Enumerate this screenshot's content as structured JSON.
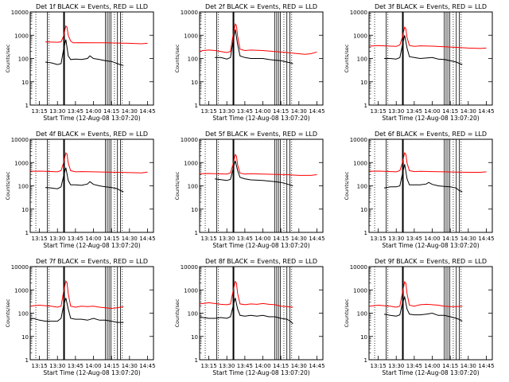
{
  "figure": {
    "ylabel": "Counts/sec",
    "xlabel": "Start Time (12-Aug-08 13:07:20)",
    "x_ticks": [
      "13:15",
      "13:30",
      "13:45",
      "14:00",
      "14:15",
      "14:30",
      "14:45"
    ],
    "x_tick_minutes": [
      15,
      30,
      45,
      60,
      75,
      90,
      105
    ],
    "y_ticks": [
      "1",
      "10",
      "100",
      "1000",
      "10000"
    ],
    "y_tick_values": [
      1,
      10,
      100,
      1000,
      10000
    ],
    "colors": {
      "events": "#000000",
      "lld": "#ff0000",
      "axes": "#000000",
      "background": "#ffffff"
    }
  },
  "chart_data": [
    {
      "type": "line",
      "title": "Det 1f BLACK = Events, RED = LLD",
      "xlabel": "Start Time (12-Aug-08 13:07:20)",
      "ylabel": "Counts/sec",
      "xlim_minutes": [
        7.33,
        110
      ],
      "ylim": [
        1,
        10000
      ],
      "log_y": true,
      "series": [
        {
          "role": "events",
          "x": [
            20,
            25,
            30,
            33,
            35,
            37,
            39,
            41,
            45,
            50,
            55,
            57,
            60,
            65,
            70,
            75,
            80,
            82,
            85
          ],
          "y": [
            70,
            65,
            55,
            60,
            230,
            650,
            130,
            90,
            95,
            90,
            100,
            130,
            100,
            90,
            80,
            75,
            60,
            55,
            50
          ]
        },
        {
          "role": "lld",
          "x": [
            20,
            30,
            33,
            35,
            37,
            38,
            39,
            41,
            43,
            50,
            60,
            70,
            80,
            90,
            100,
            105
          ],
          "y": [
            520,
            500,
            520,
            900,
            2500,
            2200,
            1000,
            560,
            470,
            480,
            470,
            470,
            460,
            450,
            430,
            450
          ]
        }
      ]
    },
    {
      "type": "line",
      "title": "Det 2f BLACK = Events, RED = LLD",
      "xlabel": "Start Time (12-Aug-08 13:07:20)",
      "ylabel": "Counts/sec",
      "xlim_minutes": [
        7.33,
        110
      ],
      "ylim": [
        1,
        10000
      ],
      "log_y": true,
      "series": [
        {
          "role": "events",
          "x": [
            20,
            25,
            30,
            33,
            35,
            37,
            39,
            41,
            45,
            50,
            55,
            60,
            65,
            70,
            75,
            80,
            83,
            85
          ],
          "y": [
            110,
            110,
            95,
            110,
            500,
            1800,
            400,
            130,
            110,
            100,
            100,
            100,
            90,
            85,
            80,
            70,
            65,
            60
          ]
        },
        {
          "role": "lld",
          "x": [
            7.5,
            10,
            15,
            20,
            25,
            30,
            33,
            35,
            37,
            38,
            39,
            41,
            45,
            50,
            60,
            70,
            80,
            90,
            95,
            100,
            105
          ],
          "y": [
            200,
            220,
            230,
            220,
            200,
            180,
            200,
            900,
            3000,
            2600,
            900,
            250,
            220,
            230,
            220,
            200,
            180,
            160,
            150,
            160,
            190
          ]
        }
      ]
    },
    {
      "type": "line",
      "title": "Det 3f BLACK = Events, RED = LLD",
      "xlabel": "Start Time (12-Aug-08 13:07:20)",
      "ylabel": "Counts/sec",
      "xlim_minutes": [
        7.33,
        110
      ],
      "ylim": [
        1,
        10000
      ],
      "log_y": true,
      "series": [
        {
          "role": "events",
          "x": [
            20,
            25,
            30,
            33,
            35,
            37,
            39,
            41,
            45,
            50,
            55,
            60,
            65,
            70,
            75,
            80,
            83,
            85
          ],
          "y": [
            100,
            100,
            95,
            110,
            350,
            1000,
            280,
            120,
            110,
            100,
            105,
            110,
            95,
            90,
            80,
            70,
            60,
            55
          ]
        },
        {
          "role": "lld",
          "x": [
            7.5,
            15,
            20,
            30,
            33,
            35,
            37,
            38,
            39,
            41,
            45,
            50,
            60,
            70,
            80,
            90,
            100,
            105
          ],
          "y": [
            340,
            360,
            350,
            330,
            380,
            800,
            2200,
            1900,
            800,
            360,
            330,
            350,
            340,
            320,
            300,
            280,
            270,
            280
          ]
        }
      ]
    },
    {
      "type": "line",
      "title": "Det 4f BLACK = Events, RED = LLD",
      "xlabel": "Start Time (12-Aug-08 13:07:20)",
      "ylabel": "Counts/sec",
      "xlim_minutes": [
        7.33,
        110
      ],
      "ylim": [
        1,
        10000
      ],
      "log_y": true,
      "series": [
        {
          "role": "events",
          "x": [
            20,
            25,
            30,
            33,
            35,
            37,
            39,
            41,
            45,
            50,
            55,
            57,
            60,
            65,
            70,
            75,
            80,
            82,
            85
          ],
          "y": [
            85,
            80,
            75,
            90,
            250,
            600,
            170,
            110,
            110,
            105,
            120,
            150,
            115,
            100,
            90,
            85,
            75,
            65,
            55
          ]
        },
        {
          "role": "lld",
          "x": [
            7.5,
            15,
            20,
            30,
            33,
            35,
            37,
            38,
            39,
            41,
            45,
            50,
            60,
            70,
            80,
            90,
            100,
            105
          ],
          "y": [
            420,
            430,
            420,
            400,
            450,
            950,
            2600,
            2300,
            950,
            450,
            400,
            410,
            400,
            390,
            380,
            370,
            360,
            390
          ]
        }
      ]
    },
    {
      "type": "line",
      "title": "Det 5f BLACK = Events, RED = LLD",
      "xlabel": "Start Time (12-Aug-08 13:07:20)",
      "ylabel": "Counts/sec",
      "xlim_minutes": [
        7.33,
        110
      ],
      "ylim": [
        1,
        10000
      ],
      "log_y": true,
      "series": [
        {
          "role": "events",
          "x": [
            20,
            25,
            30,
            33,
            35,
            37,
            39,
            41,
            45,
            50,
            55,
            60,
            65,
            70,
            75,
            80,
            85
          ],
          "y": [
            200,
            185,
            170,
            190,
            500,
            1200,
            450,
            230,
            200,
            180,
            175,
            170,
            160,
            150,
            140,
            120,
            100
          ]
        },
        {
          "role": "lld",
          "x": [
            7.5,
            15,
            20,
            30,
            33,
            35,
            37,
            38,
            39,
            41,
            45,
            50,
            60,
            70,
            80,
            90,
            100,
            105
          ],
          "y": [
            330,
            340,
            330,
            320,
            360,
            800,
            2200,
            1900,
            800,
            350,
            320,
            330,
            320,
            310,
            300,
            280,
            280,
            300
          ]
        }
      ]
    },
    {
      "type": "line",
      "title": "Det 6f BLACK = Events, RED = LLD",
      "xlabel": "Start Time (12-Aug-08 13:07:20)",
      "ylabel": "Counts/sec",
      "xlim_minutes": [
        7.33,
        110
      ],
      "ylim": [
        1,
        10000
      ],
      "log_y": true,
      "series": [
        {
          "role": "events",
          "x": [
            20,
            25,
            30,
            33,
            35,
            37,
            39,
            41,
            45,
            50,
            55,
            57,
            60,
            65,
            70,
            75,
            80,
            82,
            85
          ],
          "y": [
            80,
            90,
            90,
            100,
            300,
            850,
            200,
            110,
            110,
            110,
            120,
            140,
            115,
            100,
            95,
            90,
            80,
            65,
            55
          ]
        },
        {
          "role": "lld",
          "x": [
            7.5,
            15,
            20,
            30,
            33,
            35,
            37,
            38,
            39,
            41,
            45,
            50,
            60,
            70,
            80,
            90,
            100,
            105
          ],
          "y": [
            420,
            430,
            420,
            400,
            450,
            950,
            2600,
            2300,
            950,
            450,
            410,
            420,
            410,
            400,
            390,
            380,
            380,
            400
          ]
        }
      ]
    },
    {
      "type": "line",
      "title": "Det 7f BLACK = Events, RED = LLD",
      "xlabel": "Start Time (12-Aug-08 13:07:20)",
      "ylabel": "Counts/sec",
      "xlim_minutes": [
        7.33,
        110
      ],
      "ylim": [
        1,
        10000
      ],
      "log_y": true,
      "series": [
        {
          "role": "events",
          "x": [
            7.5,
            10,
            15,
            20,
            25,
            30,
            33,
            35,
            37,
            39,
            41,
            45,
            50,
            55,
            60,
            65,
            70,
            75,
            80,
            85
          ],
          "y": [
            55,
            60,
            50,
            45,
            45,
            45,
            60,
            200,
            450,
            150,
            60,
            55,
            55,
            50,
            60,
            50,
            50,
            45,
            40,
            40
          ]
        },
        {
          "role": "lld",
          "x": [
            7.5,
            10,
            15,
            20,
            25,
            30,
            33,
            35,
            37,
            38,
            39,
            41,
            45,
            50,
            55,
            60,
            65,
            70,
            75,
            80,
            85
          ],
          "y": [
            200,
            210,
            220,
            210,
            200,
            180,
            200,
            800,
            2400,
            2000,
            700,
            200,
            180,
            200,
            190,
            200,
            180,
            170,
            160,
            170,
            190
          ]
        }
      ]
    },
    {
      "type": "line",
      "title": "Det 8f BLACK = Events, RED = LLD",
      "xlabel": "Start Time (12-Aug-08 13:07:20)",
      "ylabel": "Counts/sec",
      "xlim_minutes": [
        7.33,
        110
      ],
      "ylim": [
        1,
        10000
      ],
      "log_y": true,
      "series": [
        {
          "role": "events",
          "x": [
            7.5,
            10,
            15,
            20,
            25,
            30,
            33,
            35,
            37,
            39,
            41,
            45,
            50,
            55,
            60,
            65,
            70,
            75,
            80,
            83,
            85
          ],
          "y": [
            70,
            65,
            60,
            60,
            65,
            60,
            70,
            180,
            450,
            150,
            80,
            75,
            80,
            75,
            80,
            70,
            70,
            60,
            55,
            45,
            35
          ]
        },
        {
          "role": "lld",
          "x": [
            7.5,
            15,
            20,
            25,
            30,
            33,
            35,
            37,
            38,
            39,
            41,
            45,
            50,
            55,
            60,
            65,
            70,
            75,
            80,
            85
          ],
          "y": [
            250,
            280,
            260,
            240,
            230,
            250,
            800,
            2300,
            2000,
            700,
            250,
            230,
            250,
            240,
            260,
            240,
            230,
            200,
            190,
            180
          ]
        }
      ]
    },
    {
      "type": "line",
      "title": "Det 9f BLACK = Events, RED = LLD",
      "xlabel": "Start Time (12-Aug-08 13:07:20)",
      "ylabel": "Counts/sec",
      "xlim_minutes": [
        7.33,
        110
      ],
      "ylim": [
        1,
        10000
      ],
      "log_y": true,
      "series": [
        {
          "role": "events",
          "x": [
            20,
            25,
            30,
            33,
            35,
            37,
            39,
            41,
            45,
            50,
            55,
            60,
            65,
            70,
            75,
            80,
            82,
            85
          ],
          "y": [
            90,
            80,
            75,
            85,
            250,
            500,
            150,
            90,
            85,
            85,
            90,
            100,
            80,
            80,
            70,
            60,
            55,
            45
          ]
        },
        {
          "role": "lld",
          "x": [
            7.5,
            15,
            20,
            25,
            30,
            33,
            35,
            37,
            38,
            39,
            41,
            45,
            50,
            55,
            60,
            65,
            70,
            75,
            80,
            85
          ],
          "y": [
            200,
            220,
            210,
            200,
            180,
            200,
            700,
            2200,
            1900,
            700,
            220,
            200,
            230,
            240,
            230,
            220,
            200,
            190,
            190,
            200
          ]
        }
      ]
    }
  ]
}
